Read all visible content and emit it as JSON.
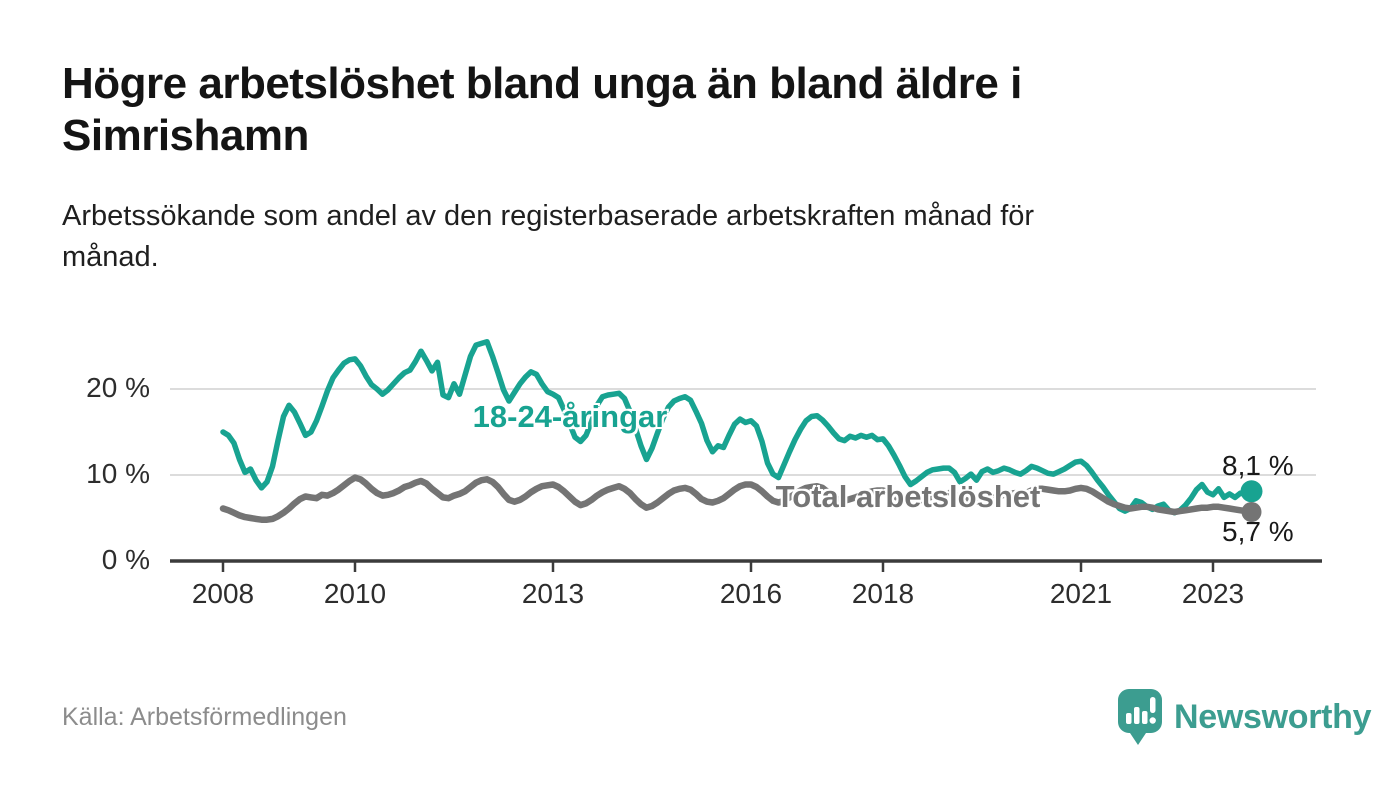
{
  "header": {
    "title": "Högre arbetslöshet bland unga än bland äldre i\nSimrishamn",
    "subtitle": "Arbetssökande som andel av den registerbaserade arbetskraften månad för\nmånad."
  },
  "chart_data": {
    "type": "line",
    "x_start_year": 2008,
    "x_frequency": "monthly",
    "x_tick_years": [
      "2008",
      "2010",
      "2013",
      "2016",
      "2018",
      "2021",
      "2023"
    ],
    "y_ticks": [
      {
        "value": 0,
        "label": "0 %"
      },
      {
        "value": 10,
        "label": "10 %"
      },
      {
        "value": 20,
        "label": "20 %"
      }
    ],
    "ylim": [
      0,
      27
    ],
    "grid": "horizontal",
    "legend_position": "inline-labels",
    "series": [
      {
        "name": "18-24-åringar",
        "color": "#18a391",
        "end_label": "8,1 %",
        "end_value": 8.1,
        "values": [
          15.0,
          14.6,
          13.7,
          11.8,
          10.3,
          10.7,
          9.4,
          8.5,
          9.2,
          11.0,
          14.0,
          16.8,
          18.1,
          17.3,
          16.0,
          14.6,
          15.0,
          16.3,
          18.0,
          19.8,
          21.3,
          22.2,
          23.0,
          23.4,
          23.5,
          22.7,
          21.5,
          20.5,
          20.0,
          19.4,
          19.9,
          20.6,
          21.3,
          21.9,
          22.2,
          23.2,
          24.4,
          23.3,
          22.1,
          23.1,
          19.3,
          19.0,
          20.6,
          19.4,
          21.6,
          23.8,
          25.1,
          25.3,
          25.5,
          23.8,
          21.9,
          19.9,
          18.6,
          19.6,
          20.6,
          21.4,
          22.0,
          21.7,
          20.6,
          19.7,
          19.4,
          19.0,
          17.6,
          16.0,
          14.4,
          13.9,
          14.6,
          16.2,
          18.1,
          19.1,
          19.3,
          19.4,
          19.5,
          18.9,
          17.4,
          15.4,
          13.4,
          11.8,
          13.1,
          14.9,
          16.6,
          17.9,
          18.6,
          18.9,
          19.1,
          18.7,
          17.4,
          16.0,
          14.0,
          12.7,
          13.4,
          13.2,
          14.6,
          15.9,
          16.5,
          16.1,
          16.3,
          15.7,
          13.9,
          11.4,
          10.1,
          9.7,
          11.2,
          12.7,
          14.1,
          15.3,
          16.3,
          16.8,
          16.9,
          16.4,
          15.7,
          14.9,
          14.2,
          14.0,
          14.5,
          14.3,
          14.6,
          14.4,
          14.6,
          14.1,
          14.2,
          13.4,
          12.3,
          11.1,
          9.8,
          8.9,
          9.3,
          9.8,
          10.3,
          10.6,
          10.7,
          10.8,
          10.8,
          10.3,
          9.2,
          9.6,
          10.1,
          9.4,
          10.4,
          10.7,
          10.3,
          10.5,
          10.8,
          10.6,
          10.3,
          10.1,
          10.5,
          11.0,
          10.8,
          10.5,
          10.2,
          10.1,
          10.4,
          10.7,
          11.1,
          11.5,
          11.6,
          11.1,
          10.3,
          9.4,
          8.6,
          7.7,
          6.9,
          6.1,
          5.8,
          6.1,
          7.0,
          6.8,
          6.3,
          6.0,
          6.4,
          6.6,
          5.9,
          5.6,
          5.9,
          6.5,
          7.3,
          8.3,
          8.9,
          8.0,
          7.7,
          8.4,
          7.4,
          7.8,
          7.4,
          7.9,
          7.7,
          8.1
        ]
      },
      {
        "name": "Total arbetslöshet",
        "color": "#747474",
        "end_label": "5,7 %",
        "end_value": 5.7,
        "values": [
          6.1,
          5.9,
          5.6,
          5.3,
          5.1,
          5.0,
          4.9,
          4.8,
          4.8,
          4.9,
          5.2,
          5.6,
          6.1,
          6.7,
          7.2,
          7.5,
          7.4,
          7.3,
          7.7,
          7.6,
          7.9,
          8.3,
          8.8,
          9.3,
          9.7,
          9.5,
          9.0,
          8.4,
          7.9,
          7.6,
          7.7,
          7.9,
          8.2,
          8.6,
          8.8,
          9.1,
          9.3,
          9.0,
          8.4,
          7.9,
          7.4,
          7.3,
          7.6,
          7.8,
          8.1,
          8.6,
          9.1,
          9.4,
          9.5,
          9.2,
          8.6,
          7.8,
          7.1,
          6.9,
          7.1,
          7.5,
          8.0,
          8.4,
          8.7,
          8.8,
          8.9,
          8.6,
          8.1,
          7.5,
          6.9,
          6.5,
          6.7,
          7.1,
          7.6,
          8.0,
          8.3,
          8.5,
          8.7,
          8.4,
          7.9,
          7.2,
          6.6,
          6.2,
          6.4,
          6.8,
          7.3,
          7.8,
          8.2,
          8.4,
          8.5,
          8.3,
          7.8,
          7.2,
          6.9,
          6.8,
          7.0,
          7.3,
          7.8,
          8.3,
          8.7,
          8.9,
          8.9,
          8.6,
          8.1,
          7.5,
          7.0,
          6.8,
          7.0,
          7.4,
          7.8,
          8.2,
          8.5,
          8.6,
          8.7,
          8.5,
          8.0,
          7.5,
          7.1,
          7.0,
          7.2,
          7.4,
          7.7,
          7.9,
          8.1,
          8.2,
          8.2,
          8.0,
          7.6,
          7.2,
          6.9,
          6.8,
          7.0,
          7.1,
          7.3,
          7.5,
          7.7,
          7.8,
          7.9,
          7.7,
          7.4,
          7.1,
          6.9,
          6.9,
          7.1,
          7.2,
          7.3,
          7.5,
          7.7,
          7.8,
          7.9,
          7.8,
          7.9,
          8.2,
          8.4,
          8.4,
          8.3,
          8.2,
          8.1,
          8.1,
          8.2,
          8.4,
          8.5,
          8.4,
          8.1,
          7.7,
          7.3,
          6.9,
          6.6,
          6.4,
          6.2,
          6.1,
          6.2,
          6.3,
          6.3,
          6.2,
          6.0,
          5.9,
          5.8,
          5.7,
          5.8,
          5.9,
          6.0,
          6.1,
          6.2,
          6.2,
          6.3,
          6.3,
          6.2,
          6.1,
          6.0,
          5.9,
          5.8,
          5.7
        ]
      }
    ]
  },
  "footer": {
    "source": "Källa: Arbetsförmedlingen",
    "brand": "Newsworthy"
  },
  "colors": {
    "accent_teal": "#18a391",
    "line_gray": "#747474",
    "axis": "#3b3b3b",
    "grid": "#dcdcdc",
    "logo_teal": "#3c9d90"
  }
}
